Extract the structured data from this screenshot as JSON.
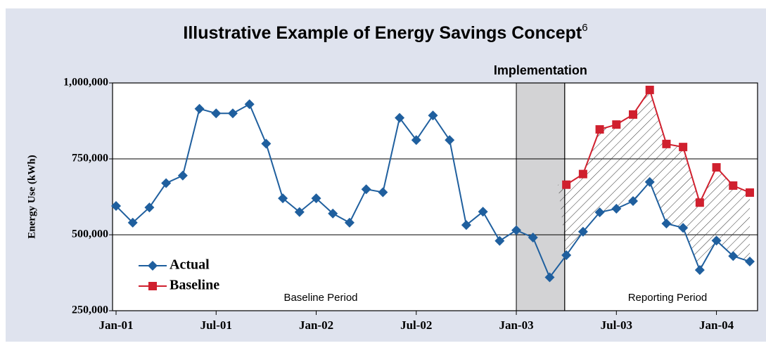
{
  "chart_data": {
    "type": "line",
    "title": "Illustrative Example of Energy Savings Concept",
    "title_footnote": "6",
    "y_label": "Energy Use (kWh)",
    "annotations": {
      "implementation": "Implementation",
      "baseline_period": "Baseline Period",
      "reporting_period": "Reporting Period"
    },
    "categories": [
      "Jan-01",
      null,
      null,
      null,
      null,
      null,
      "Jul-01",
      null,
      null,
      null,
      null,
      null,
      "Jan-02",
      null,
      null,
      null,
      null,
      null,
      "Jul-02",
      null,
      null,
      null,
      null,
      null,
      "Jan-03",
      null,
      null,
      null,
      null,
      null,
      "Jul-03",
      null,
      null,
      null,
      null,
      null,
      "Jan-04",
      null,
      null
    ],
    "series": [
      {
        "name": "Actual",
        "color": "#1f5f9e",
        "marker": "diamond",
        "values": [
          595000,
          540000,
          590000,
          670000,
          695000,
          915000,
          900000,
          900000,
          930000,
          800000,
          620000,
          575000,
          620000,
          570000,
          540000,
          650000,
          640000,
          885000,
          812000,
          893000,
          812000,
          532000,
          576000,
          480000,
          515000,
          491000,
          360000,
          433000,
          510000,
          574000,
          586000,
          611000,
          674000,
          537000,
          523000,
          384000,
          481000,
          430000,
          412000
        ]
      },
      {
        "name": "Baseline",
        "color": "#d0202e",
        "marker": "square",
        "values": [
          null,
          null,
          null,
          null,
          null,
          null,
          null,
          null,
          null,
          null,
          null,
          null,
          null,
          null,
          null,
          null,
          null,
          null,
          null,
          null,
          null,
          null,
          null,
          null,
          null,
          null,
          null,
          665000,
          700000,
          847000,
          863000,
          896000,
          977000,
          799000,
          789000,
          606000,
          722000,
          662000,
          639000
        ]
      }
    ],
    "ylim": [
      250000,
      1000000
    ],
    "yticks": [
      {
        "value": 250000,
        "label": "250,000"
      },
      {
        "value": 500000,
        "label": "500,000"
      },
      {
        "value": 750000,
        "label": "750,000"
      },
      {
        "value": 1000000,
        "label": "1,000,000"
      }
    ],
    "grid": true,
    "legend": "lower-left"
  }
}
